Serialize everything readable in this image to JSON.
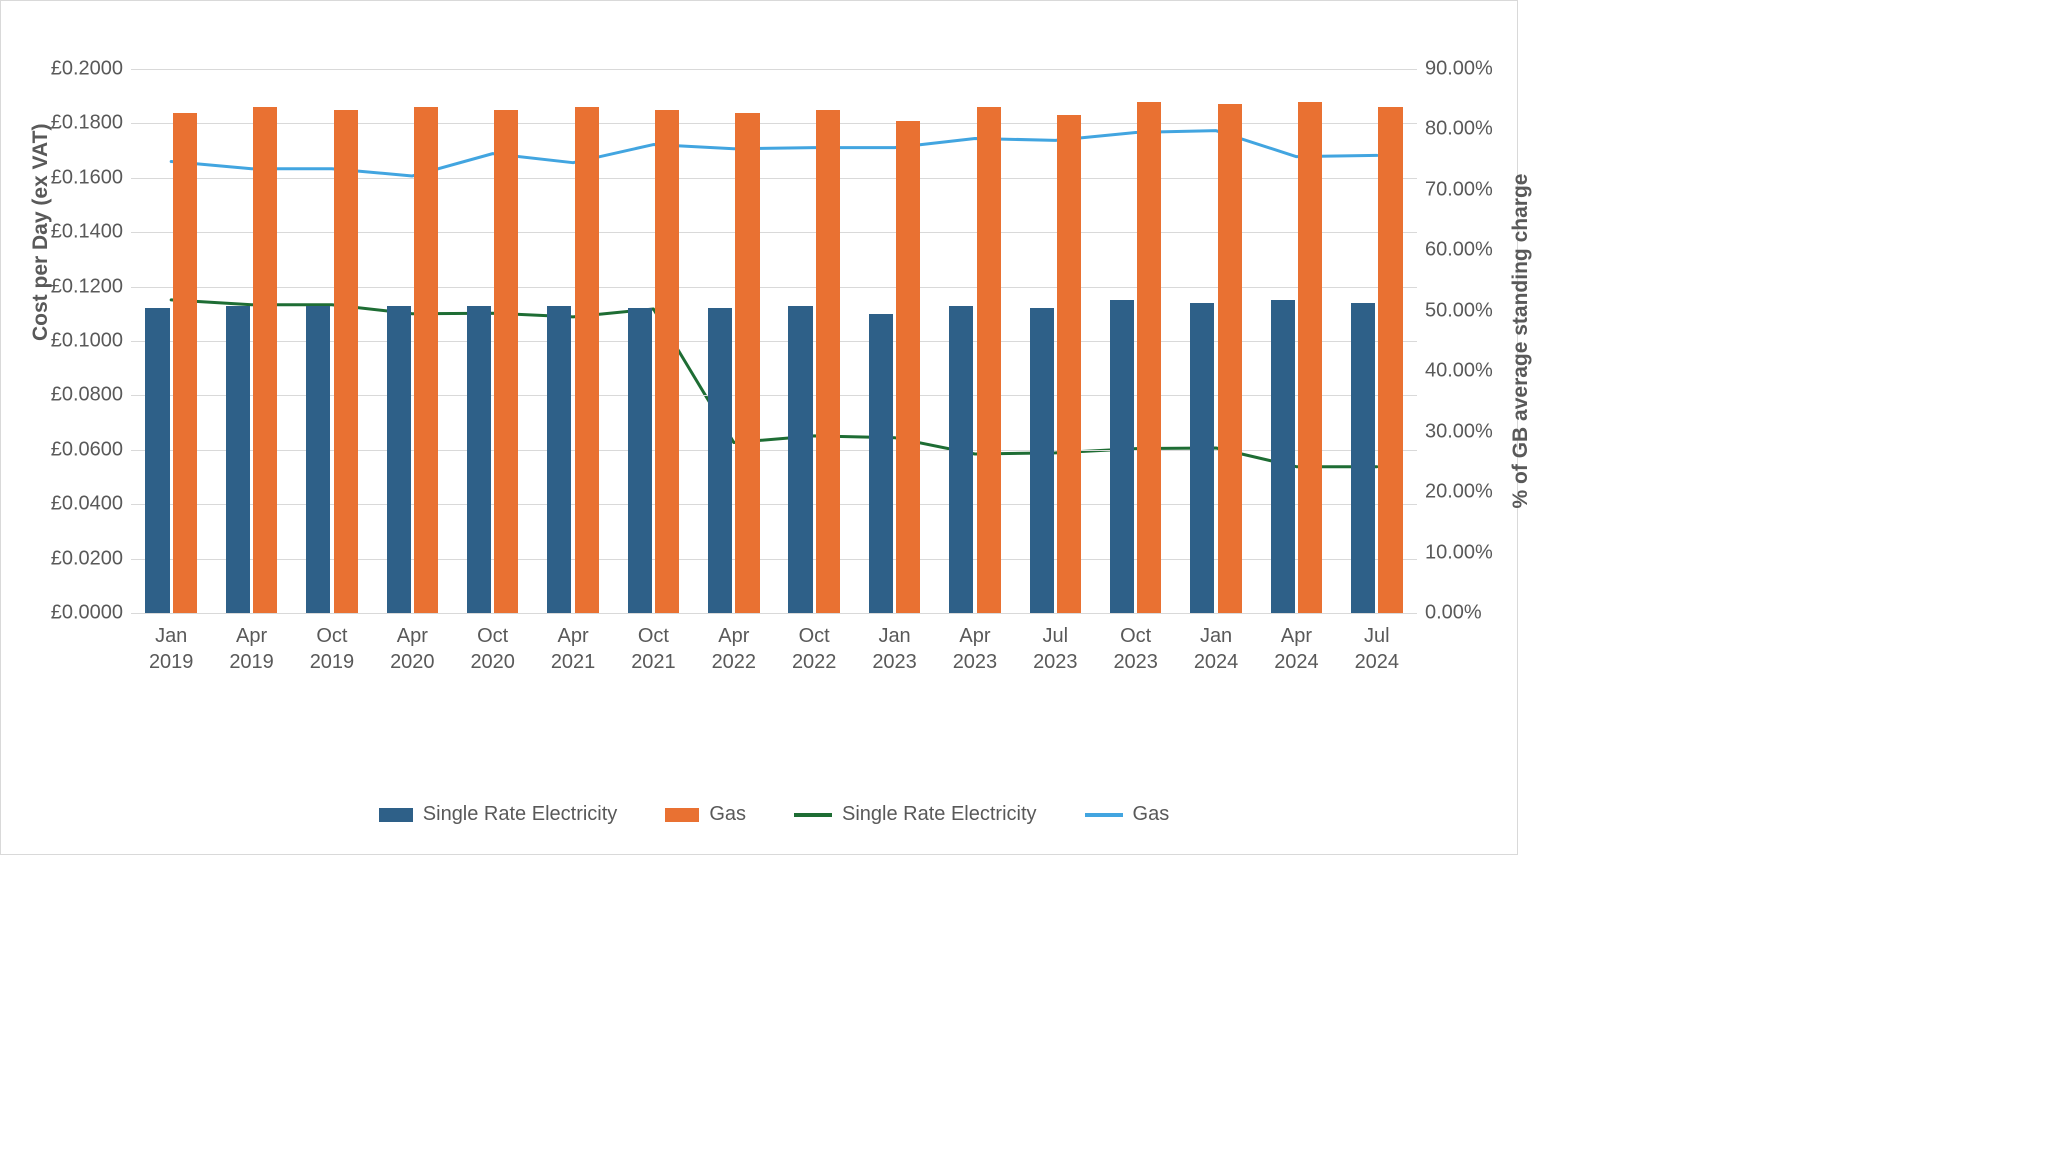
{
  "chart": {
    "type": "bar+line (dual axis)",
    "background_color": "#ffffff",
    "grid_color": "#d9d9d9",
    "text_color": "#595959",
    "categories": [
      {
        "l1": "Jan",
        "l2": "2019"
      },
      {
        "l1": "Apr",
        "l2": "2019"
      },
      {
        "l1": "Oct",
        "l2": "2019"
      },
      {
        "l1": "Apr",
        "l2": "2020"
      },
      {
        "l1": "Oct",
        "l2": "2020"
      },
      {
        "l1": "Apr",
        "l2": "2021"
      },
      {
        "l1": "Oct",
        "l2": "2021"
      },
      {
        "l1": "Apr",
        "l2": "2022"
      },
      {
        "l1": "Oct",
        "l2": "2022"
      },
      {
        "l1": "Jan",
        "l2": "2023"
      },
      {
        "l1": "Apr",
        "l2": "2023"
      },
      {
        "l1": "Jul",
        "l2": "2023"
      },
      {
        "l1": "Oct",
        "l2": "2023"
      },
      {
        "l1": "Jan",
        "l2": "2024"
      },
      {
        "l1": "Apr",
        "l2": "2024"
      },
      {
        "l1": "Jul",
        "l2": "2024"
      }
    ],
    "left_axis": {
      "title": "Cost per Day (ex VAT)",
      "min": 0.0,
      "max": 0.2,
      "step": 0.02,
      "tick_labels": [
        "£0.0000",
        "£0.0200",
        "£0.0400",
        "£0.0600",
        "£0.0800",
        "£0.1000",
        "£0.1200",
        "£0.1400",
        "£0.1600",
        "£0.1800",
        "£0.2000"
      ]
    },
    "right_axis": {
      "title": "% of GB average standing charge",
      "min": 0,
      "max": 90,
      "step": 10,
      "tick_labels": [
        "0.00%",
        "10.00%",
        "20.00%",
        "30.00%",
        "40.00%",
        "50.00%",
        "60.00%",
        "70.00%",
        "80.00%",
        "90.00%"
      ]
    },
    "bars": {
      "electricity": {
        "label": "Single Rate Electricity",
        "color": "#2e6088",
        "values": [
          0.112,
          0.113,
          0.113,
          0.113,
          0.113,
          0.113,
          0.112,
          0.112,
          0.113,
          0.11,
          0.113,
          0.112,
          0.115,
          0.114,
          0.115,
          0.114
        ]
      },
      "gas": {
        "label": "Gas",
        "color": "#e97132",
        "values": [
          0.184,
          0.186,
          0.185,
          0.186,
          0.185,
          0.186,
          0.185,
          0.184,
          0.185,
          0.181,
          0.186,
          0.183,
          0.188,
          0.187,
          0.188,
          0.186
        ]
      },
      "bar_width_ratio": 0.3,
      "pair_gap_ratio": 0.04
    },
    "lines": {
      "electricity_pct": {
        "label": "Single Rate Electricity",
        "color": "#1e6d34",
        "values": [
          51.8,
          51.0,
          51.0,
          49.5,
          49.6,
          49.0,
          50.3,
          28.2,
          29.3,
          29.0,
          26.3,
          26.5,
          27.2,
          27.3,
          24.2,
          24.2
        ],
        "width": 3
      },
      "gas_pct": {
        "label": "Gas",
        "color": "#42a5e0",
        "values": [
          74.7,
          73.5,
          73.5,
          72.3,
          76.0,
          74.5,
          77.5,
          76.8,
          77.0,
          77.0,
          78.5,
          78.2,
          79.5,
          79.8,
          75.5,
          75.7
        ],
        "width": 3
      }
    }
  }
}
